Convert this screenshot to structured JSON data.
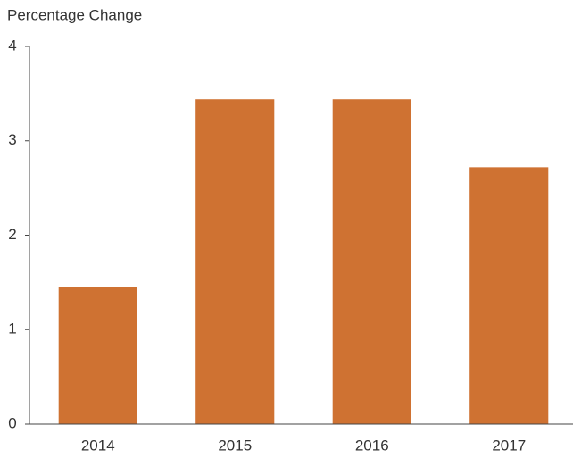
{
  "chart_data": {
    "type": "bar",
    "y_axis_label": "Percentage Change",
    "categories": [
      "2014",
      "2015",
      "2016",
      "2017"
    ],
    "values": [
      1.45,
      3.44,
      3.44,
      2.72
    ],
    "color": "#cf7232",
    "ylim": [
      0,
      4
    ],
    "yticks": [
      0,
      1,
      2,
      3,
      4
    ],
    "grid": false
  }
}
